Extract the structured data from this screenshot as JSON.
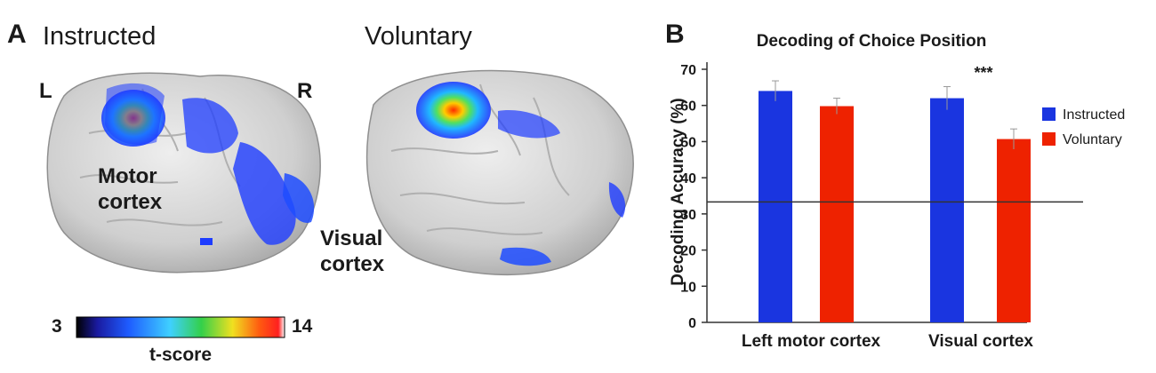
{
  "panel_a": {
    "letter": "A",
    "titles": {
      "instructed": "Instructed",
      "voluntary": "Voluntary"
    },
    "hemisphere_labels": {
      "left": "L",
      "right": "R"
    },
    "region_labels": {
      "motor_line1": "Motor",
      "motor_line2": "cortex",
      "visual_line1": "Visual",
      "visual_line2": "cortex"
    },
    "colorbar": {
      "min": "3",
      "max": "14",
      "label": "t-score"
    }
  },
  "panel_b": {
    "letter": "B"
  },
  "chart_data": {
    "type": "bar",
    "title": "Decoding of Choice Position",
    "ylabel": "Decoding Accuracy (%)",
    "xlabel": "",
    "categories": [
      "Left motor cortex",
      "Visual cortex"
    ],
    "series": [
      {
        "name": "Instructed",
        "values": [
          64,
          62
        ],
        "errors": [
          2.8,
          3.2
        ],
        "color": "#1a35e0"
      },
      {
        "name": "Voluntary",
        "values": [
          59.8,
          50.7
        ],
        "errors": [
          2.2,
          2.8
        ],
        "color": "#ee2200"
      }
    ],
    "ylim": [
      0,
      70
    ],
    "yticks": [
      "0",
      "10",
      "20",
      "30",
      "40",
      "50",
      "60",
      "70"
    ],
    "chance_level": 33.3,
    "annotation": {
      "text": "***",
      "category_index": 1
    },
    "legend_position": "right",
    "grid": false
  }
}
